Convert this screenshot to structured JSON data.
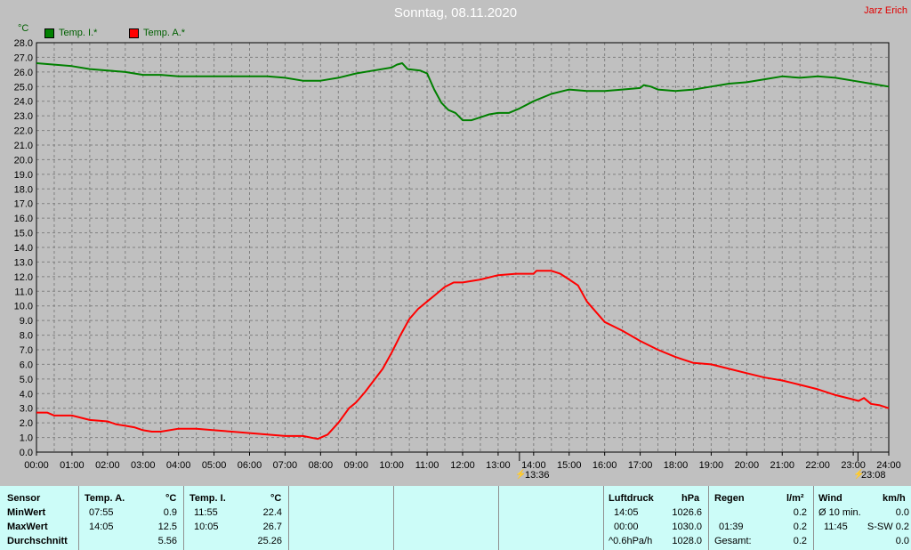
{
  "title": "Sonntag, 08.11.2020",
  "author": "Jarz Erich",
  "unit": "°C",
  "colors": {
    "temp_i": "#008000",
    "temp_a": "#ff0000",
    "grid": "#808080",
    "table_bg": "#ccfcf8"
  },
  "chart_data": {
    "type": "line",
    "ylabel": "°C",
    "ylim": [
      0,
      28
    ],
    "xlim": [
      "00:00",
      "24:00"
    ],
    "x_ticks": [
      "00:00",
      "01:00",
      "02:00",
      "03:00",
      "04:00",
      "05:00",
      "06:00",
      "07:00",
      "08:00",
      "09:00",
      "10:00",
      "11:00",
      "12:00",
      "13:00",
      "14:00",
      "15:00",
      "16:00",
      "17:00",
      "18:00",
      "19:00",
      "20:00",
      "21:00",
      "22:00",
      "23:00",
      "24:00"
    ],
    "y_ticks": [
      "0.0",
      "1.0",
      "2.0",
      "3.0",
      "4.0",
      "5.0",
      "6.0",
      "7.0",
      "8.0",
      "9.0",
      "10.0",
      "11.0",
      "12.0",
      "13.0",
      "14.0",
      "15.0",
      "16.0",
      "17.0",
      "18.0",
      "19.0",
      "20.0",
      "21.0",
      "22.0",
      "23.0",
      "24.0",
      "25.0",
      "26.0",
      "27.0",
      "28.0"
    ],
    "grid": true,
    "legend_position": "top-left",
    "series": [
      {
        "name": "Temp. I.*",
        "color": "#008000",
        "points": [
          [
            0,
            26.6
          ],
          [
            0.5,
            26.5
          ],
          [
            1,
            26.4
          ],
          [
            1.5,
            26.2
          ],
          [
            2,
            26.1
          ],
          [
            2.5,
            26.0
          ],
          [
            3,
            25.8
          ],
          [
            3.5,
            25.8
          ],
          [
            4,
            25.7
          ],
          [
            5,
            25.7
          ],
          [
            6,
            25.7
          ],
          [
            6.5,
            25.7
          ],
          [
            7,
            25.6
          ],
          [
            7.5,
            25.4
          ],
          [
            8,
            25.4
          ],
          [
            8.5,
            25.6
          ],
          [
            9,
            25.9
          ],
          [
            9.5,
            26.1
          ],
          [
            10,
            26.3
          ],
          [
            10.15,
            26.5
          ],
          [
            10.3,
            26.6
          ],
          [
            10.45,
            26.2
          ],
          [
            10.8,
            26.1
          ],
          [
            11,
            25.9
          ],
          [
            11.2,
            24.8
          ],
          [
            11.4,
            23.9
          ],
          [
            11.6,
            23.4
          ],
          [
            11.8,
            23.2
          ],
          [
            12,
            22.7
          ],
          [
            12.25,
            22.7
          ],
          [
            12.5,
            22.9
          ],
          [
            12.75,
            23.1
          ],
          [
            13,
            23.2
          ],
          [
            13.3,
            23.2
          ],
          [
            13.6,
            23.5
          ],
          [
            14,
            24.0
          ],
          [
            14.5,
            24.5
          ],
          [
            15,
            24.8
          ],
          [
            15.5,
            24.7
          ],
          [
            16,
            24.7
          ],
          [
            16.5,
            24.8
          ],
          [
            17,
            24.9
          ],
          [
            17.1,
            25.1
          ],
          [
            17.3,
            25.0
          ],
          [
            17.5,
            24.8
          ],
          [
            18,
            24.7
          ],
          [
            18.5,
            24.8
          ],
          [
            19,
            25.0
          ],
          [
            19.5,
            25.2
          ],
          [
            20,
            25.3
          ],
          [
            20.5,
            25.5
          ],
          [
            21,
            25.7
          ],
          [
            21.5,
            25.6
          ],
          [
            22,
            25.7
          ],
          [
            22.5,
            25.6
          ],
          [
            23,
            25.4
          ],
          [
            23.5,
            25.2
          ],
          [
            24,
            25.0
          ]
        ]
      },
      {
        "name": "Temp. A.*",
        "color": "#ff0000",
        "points": [
          [
            0,
            2.7
          ],
          [
            0.3,
            2.7
          ],
          [
            0.5,
            2.5
          ],
          [
            1,
            2.5
          ],
          [
            1.5,
            2.2
          ],
          [
            2,
            2.1
          ],
          [
            2.25,
            1.9
          ],
          [
            2.5,
            1.8
          ],
          [
            2.75,
            1.7
          ],
          [
            3,
            1.5
          ],
          [
            3.25,
            1.4
          ],
          [
            3.5,
            1.4
          ],
          [
            4,
            1.6
          ],
          [
            4.5,
            1.6
          ],
          [
            5,
            1.5
          ],
          [
            5.5,
            1.4
          ],
          [
            6,
            1.3
          ],
          [
            6.5,
            1.2
          ],
          [
            7,
            1.1
          ],
          [
            7.5,
            1.1
          ],
          [
            7.92,
            0.9
          ],
          [
            8.2,
            1.2
          ],
          [
            8.5,
            2.0
          ],
          [
            8.8,
            3.0
          ],
          [
            9,
            3.4
          ],
          [
            9.25,
            4.1
          ],
          [
            9.5,
            4.9
          ],
          [
            9.75,
            5.7
          ],
          [
            10,
            6.8
          ],
          [
            10.25,
            8.0
          ],
          [
            10.5,
            9.1
          ],
          [
            10.75,
            9.8
          ],
          [
            11,
            10.3
          ],
          [
            11.25,
            10.8
          ],
          [
            11.5,
            11.3
          ],
          [
            11.75,
            11.6
          ],
          [
            12,
            11.6
          ],
          [
            12.5,
            11.8
          ],
          [
            13,
            12.1
          ],
          [
            13.5,
            12.2
          ],
          [
            14,
            12.2
          ],
          [
            14.08,
            12.4
          ],
          [
            14.5,
            12.4
          ],
          [
            14.75,
            12.2
          ],
          [
            15,
            11.8
          ],
          [
            15.25,
            11.4
          ],
          [
            15.5,
            10.3
          ],
          [
            15.75,
            9.6
          ],
          [
            16,
            8.9
          ],
          [
            16.5,
            8.3
          ],
          [
            17,
            7.6
          ],
          [
            17.5,
            7.0
          ],
          [
            18,
            6.5
          ],
          [
            18.5,
            6.1
          ],
          [
            19,
            6.0
          ],
          [
            19.5,
            5.7
          ],
          [
            20,
            5.4
          ],
          [
            20.5,
            5.1
          ],
          [
            21,
            4.9
          ],
          [
            21.5,
            4.6
          ],
          [
            22,
            4.3
          ],
          [
            22.5,
            3.9
          ],
          [
            23,
            3.6
          ],
          [
            23.15,
            3.5
          ],
          [
            23.3,
            3.7
          ],
          [
            23.5,
            3.3
          ],
          [
            23.75,
            3.2
          ],
          [
            24,
            3.0
          ]
        ]
      }
    ],
    "markers": [
      {
        "x": 13.6,
        "label": "13:36"
      },
      {
        "x": 23.133,
        "label": "23:08"
      }
    ]
  },
  "table": {
    "sensor": {
      "header": "Sensor",
      "min": "MinWert",
      "max": "MaxWert",
      "avg": "Durchschnitt"
    },
    "temp_a": {
      "header": "Temp. A.",
      "unit": "°C",
      "min_time": "07:55",
      "min_val": "0.9",
      "max_time": "14:05",
      "max_val": "12.5",
      "avg_val": "5.56"
    },
    "temp_i": {
      "header": "Temp. I.",
      "unit": "°C",
      "min_time": "11:55",
      "min_val": "22.4",
      "max_time": "10:05",
      "max_val": "26.7",
      "avg_val": "25.26"
    },
    "luftdruck": {
      "header": "Luftdruck",
      "unit": "hPa",
      "min_time": "14:05",
      "min_val": "1026.6",
      "max_time": "00:00",
      "max_val": "1030.0",
      "trend_label": "^0.6hPa/h",
      "trend_val": "1028.0"
    },
    "regen": {
      "header": "Regen",
      "unit": "l/m²",
      "row1_val": "0.2",
      "row2_time": "01:39",
      "row2_val": "0.2",
      "total_label": "Gesamt:",
      "total_val": "0.2"
    },
    "wind": {
      "header": "Wind",
      "unit": "km/h",
      "avg_label": "Ø 10 min.",
      "avg_val": "0.0",
      "max_time": "11:45",
      "max_val": "S-SW 0.2",
      "row3_val": "0.0"
    }
  }
}
